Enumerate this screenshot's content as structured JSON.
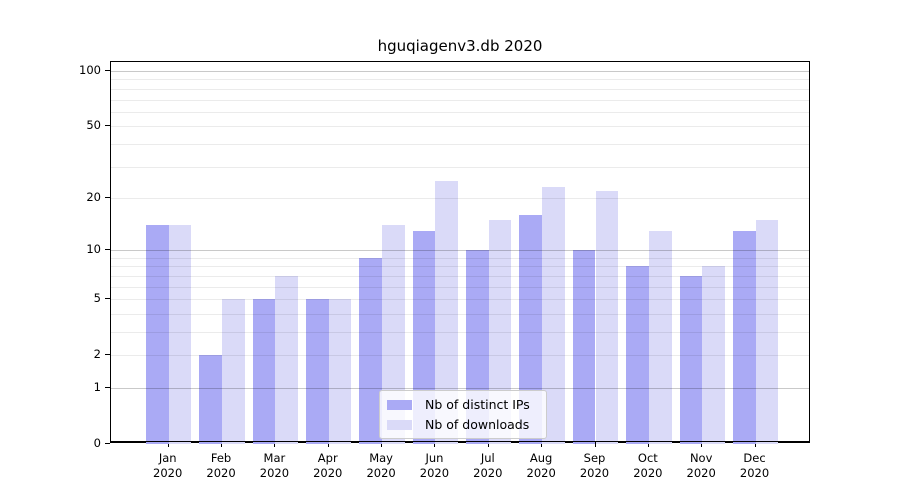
{
  "chart_data": {
    "type": "bar",
    "title": "hguqiagenv3.db 2020",
    "yscale": "log1p",
    "ylim": [
      0,
      112
    ],
    "yticks": [
      0,
      1,
      2,
      5,
      10,
      20,
      50,
      100
    ],
    "major_grid_values": [
      1,
      10,
      100
    ],
    "minor_grid_values": [
      2,
      3,
      4,
      5,
      6,
      7,
      8,
      9,
      20,
      30,
      40,
      50,
      60,
      70,
      80,
      90
    ],
    "categories": [
      "Jan",
      "Feb",
      "Mar",
      "Apr",
      "May",
      "Jun",
      "Jul",
      "Aug",
      "Sep",
      "Oct",
      "Nov",
      "Dec"
    ],
    "year": "2020",
    "series": [
      {
        "name": "Nb of distinct IPs",
        "color": "#aaaaf5",
        "values": [
          14,
          2,
          5,
          5,
          9,
          13,
          10,
          16,
          10,
          8,
          7,
          13
        ]
      },
      {
        "name": "Nb of downloads",
        "color": "#dadaf8",
        "values": [
          14,
          5,
          7,
          5,
          14,
          25,
          15,
          23,
          22,
          13,
          8,
          15
        ]
      }
    ],
    "legend_position": "lower center",
    "grid": "on",
    "colors": {
      "axis": "#000000",
      "major_grid": "#c9c9c9",
      "minor_grid": "#ebebeb",
      "legend_border": "#cccccc"
    }
  }
}
